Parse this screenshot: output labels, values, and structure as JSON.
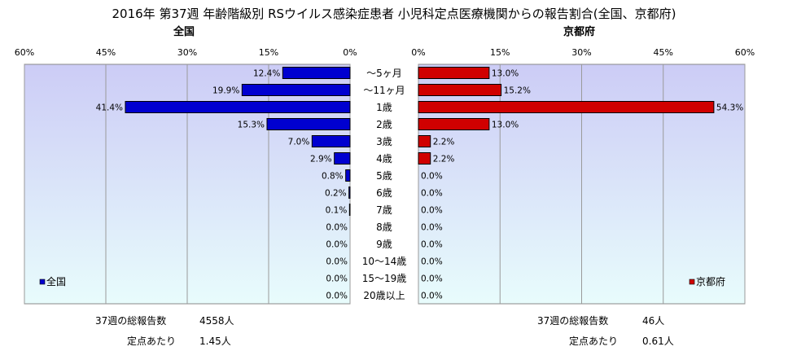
{
  "title": "2016年 第37週 年齢階級別 RSウイルス感染症患者 小児科定点医療機関からの報告割合(全国、京都府)",
  "left_panel": {
    "subtitle": "全国",
    "legend": "全国",
    "total_label": "37週の総報告数",
    "total_value": "4558人",
    "per_site_label": "定点あたり",
    "per_site_value": "1.45人"
  },
  "right_panel": {
    "subtitle": "京都府",
    "legend": "京都府",
    "total_label": "37週の総報告数",
    "total_value": "46人",
    "per_site_label": "定点あたり",
    "per_site_value": "0.61人"
  },
  "colors": {
    "plot_top": "#ccccf6",
    "plot_bottom": "#e8fcfc",
    "nationwide_bar": "#0000d0",
    "kyoto_bar": "#d00000"
  },
  "chart_data": [
    {
      "type": "bar",
      "orientation": "horizontal",
      "direction": "right-to-left",
      "subtitle": "全国",
      "categories": [
        "～5ヶ月",
        "～11ヶ月",
        "1歳",
        "2歳",
        "3歳",
        "4歳",
        "5歳",
        "6歳",
        "7歳",
        "8歳",
        "9歳",
        "10～14歳",
        "15～19歳",
        "20歳以上"
      ],
      "series": [
        {
          "name": "全国",
          "values": [
            12.4,
            19.9,
            41.4,
            15.3,
            7.0,
            2.9,
            0.8,
            0.2,
            0.1,
            0.0,
            0.0,
            0.0,
            0.0,
            0.0
          ],
          "labels": [
            "12.4%",
            "19.9%",
            "41.4%",
            "15.3%",
            "7.0%",
            "2.9%",
            "0.8%",
            "0.2%",
            "0.1%",
            "0.0%",
            "0.0%",
            "0.0%",
            "0.0%",
            "0.0%"
          ]
        }
      ],
      "xlim": [
        0,
        60
      ],
      "ticks": [
        "60%",
        "45%",
        "30%",
        "15%",
        "0%"
      ],
      "legend_position": "bottom-left",
      "grid": true
    },
    {
      "type": "bar",
      "orientation": "horizontal",
      "direction": "left-to-right",
      "subtitle": "京都府",
      "categories": [
        "～5ヶ月",
        "～11ヶ月",
        "1歳",
        "2歳",
        "3歳",
        "4歳",
        "5歳",
        "6歳",
        "7歳",
        "8歳",
        "9歳",
        "10～14歳",
        "15～19歳",
        "20歳以上"
      ],
      "series": [
        {
          "name": "京都府",
          "values": [
            13.0,
            15.2,
            54.3,
            13.0,
            2.2,
            2.2,
            0.0,
            0.0,
            0.0,
            0.0,
            0.0,
            0.0,
            0.0,
            0.0
          ],
          "labels": [
            "13.0%",
            "15.2%",
            "54.3%",
            "13.0%",
            "2.2%",
            "2.2%",
            "0.0%",
            "0.0%",
            "0.0%",
            "0.0%",
            "0.0%",
            "0.0%",
            "0.0%",
            "0.0%"
          ]
        }
      ],
      "xlim": [
        0,
        60
      ],
      "ticks": [
        "0%",
        "15%",
        "30%",
        "45%",
        "60%"
      ],
      "legend_position": "bottom-right",
      "grid": true
    }
  ]
}
